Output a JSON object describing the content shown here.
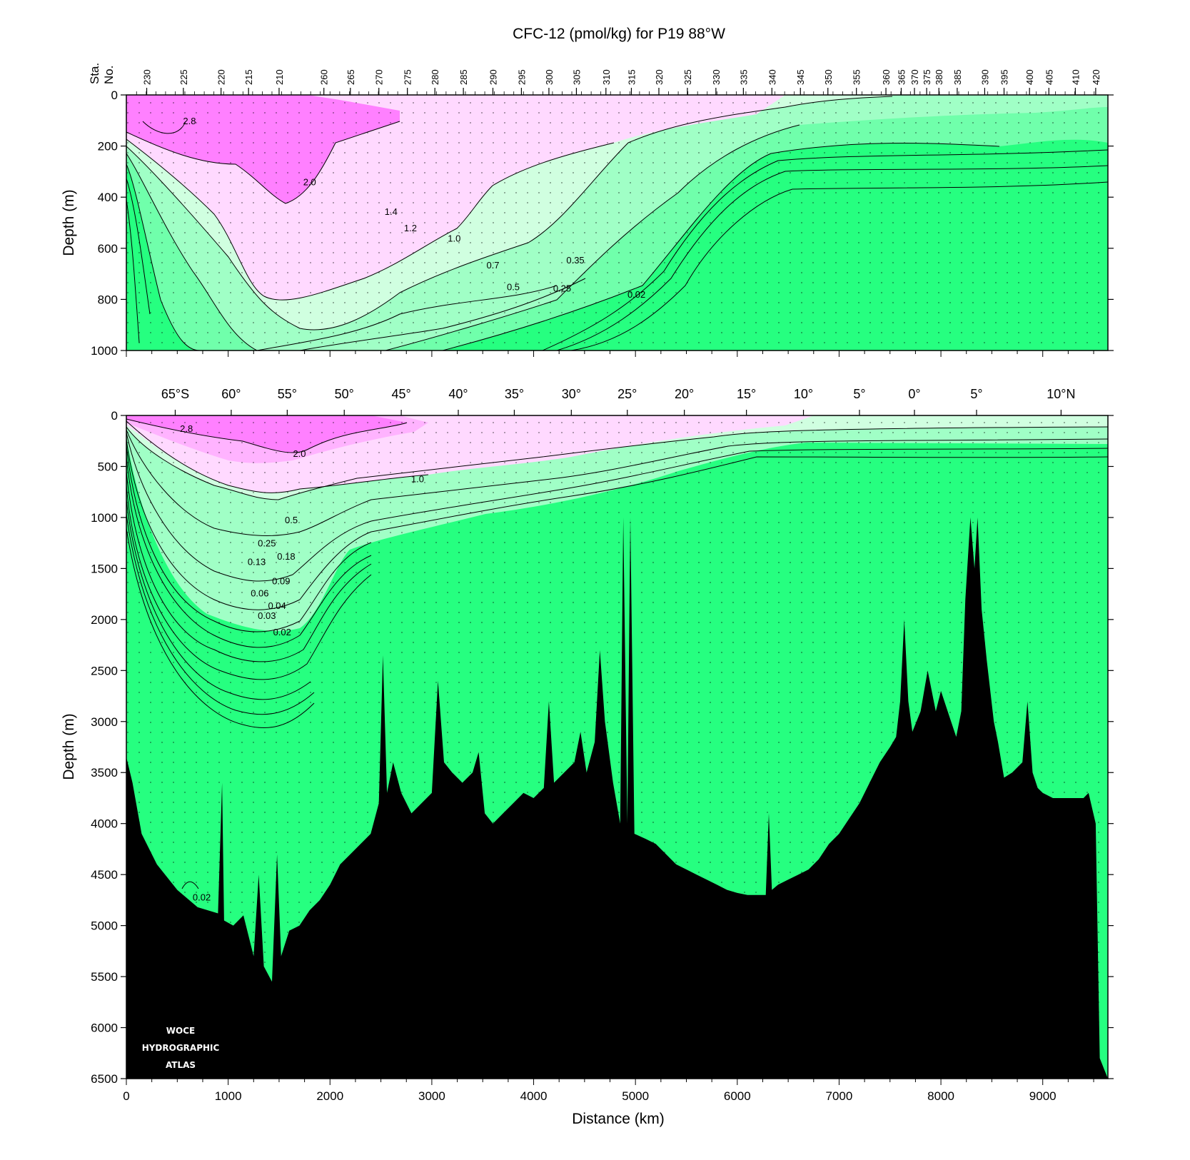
{
  "chart_data": {
    "type": "contour-section",
    "title": "CFC-12 (pmol/kg) for P19 88°W",
    "xlabel": "Distance (km)",
    "ylabel": "Depth (m)",
    "xlim": [
      0,
      9640
    ],
    "colors": {
      "pink_high": "#ff80ff",
      "pink_mid": "#ffb3ff",
      "pink_low": "#ffd9ff",
      "green_1": "#d0ffe0",
      "green_2": "#a0ffc6",
      "green_3": "#70ffab",
      "green_bg": "#26ff80",
      "bathymetry": "#000000"
    },
    "station_axis": {
      "label_line1": "Sta.",
      "label_line2": "No.",
      "stations": [
        {
          "label": "230",
          "km": 200
        },
        {
          "label": "225",
          "km": 560
        },
        {
          "label": "220",
          "km": 930
        },
        {
          "label": "215",
          "km": 1200
        },
        {
          "label": "210",
          "km": 1500
        },
        {
          "label": "260",
          "km": 1940
        },
        {
          "label": "265",
          "km": 2200
        },
        {
          "label": "270",
          "km": 2480
        },
        {
          "label": "275",
          "km": 2760
        },
        {
          "label": "280",
          "km": 3030
        },
        {
          "label": "285",
          "km": 3310
        },
        {
          "label": "290",
          "km": 3600
        },
        {
          "label": "295",
          "km": 3880
        },
        {
          "label": "300",
          "km": 4150
        },
        {
          "label": "305",
          "km": 4420
        },
        {
          "label": "310",
          "km": 4710
        },
        {
          "label": "315",
          "km": 4960
        },
        {
          "label": "320",
          "km": 5230
        },
        {
          "label": "325",
          "km": 5510
        },
        {
          "label": "330",
          "km": 5790
        },
        {
          "label": "335",
          "km": 6060
        },
        {
          "label": "340",
          "km": 6340
        },
        {
          "label": "345",
          "km": 6620
        },
        {
          "label": "350",
          "km": 6890
        },
        {
          "label": "355",
          "km": 7170
        },
        {
          "label": "360",
          "km": 7460
        },
        {
          "label": "365",
          "km": 7610
        },
        {
          "label": "370",
          "km": 7740
        },
        {
          "label": "375",
          "km": 7860
        },
        {
          "label": "380",
          "km": 7980
        },
        {
          "label": "385",
          "km": 8160
        },
        {
          "label": "390",
          "km": 8430
        },
        {
          "label": "395",
          "km": 8620
        },
        {
          "label": "400",
          "km": 8870
        },
        {
          "label": "405",
          "km": 9060
        },
        {
          "label": "410",
          "km": 9320
        },
        {
          "label": "420",
          "km": 9520
        }
      ]
    },
    "latitude_axis": [
      {
        "label": "65°S",
        "km": 480
      },
      {
        "label": "60°",
        "km": 1030
      },
      {
        "label": "55°",
        "km": 1580
      },
      {
        "label": "50°",
        "km": 2140
      },
      {
        "label": "45°",
        "km": 2700
      },
      {
        "label": "40°",
        "km": 3260
      },
      {
        "label": "35°",
        "km": 3810
      },
      {
        "label": "30°",
        "km": 4370
      },
      {
        "label": "25°",
        "km": 4920
      },
      {
        "label": "20°",
        "km": 5480
      },
      {
        "label": "15°",
        "km": 6090
      },
      {
        "label": "10°",
        "km": 6650
      },
      {
        "label": "5°",
        "km": 7200
      },
      {
        "label": "0°",
        "km": 7740
      },
      {
        "label": "5°",
        "km": 8350
      },
      {
        "label": "10°N",
        "km": 9180
      }
    ],
    "panels": [
      {
        "name": "upper",
        "ylim": [
          0,
          1000
        ],
        "yticks": [
          "0",
          "200",
          "400",
          "600",
          "800",
          "1000"
        ],
        "contour_labels": [
          {
            "text": "2.8",
            "km": 620,
            "depth": 100
          },
          {
            "text": "2.0",
            "km": 1800,
            "depth": 340
          },
          {
            "text": "1.4",
            "km": 2600,
            "depth": 455
          },
          {
            "text": "1.2",
            "km": 2790,
            "depth": 520
          },
          {
            "text": "1.0",
            "km": 3220,
            "depth": 560
          },
          {
            "text": "0.7",
            "km": 3600,
            "depth": 665
          },
          {
            "text": "0.5",
            "km": 3800,
            "depth": 750
          },
          {
            "text": "0.35",
            "km": 4410,
            "depth": 645
          },
          {
            "text": "0.25",
            "km": 4280,
            "depth": 755
          },
          {
            "text": "0.02",
            "km": 5010,
            "depth": 780
          }
        ]
      },
      {
        "name": "lower",
        "ylim": [
          0,
          6500
        ],
        "yticks": [
          "0",
          "500",
          "1000",
          "1500",
          "2000",
          "2500",
          "3000",
          "3500",
          "4000",
          "4500",
          "5000",
          "5500",
          "6000",
          "6500"
        ],
        "xticks": [
          "0",
          "1000",
          "2000",
          "3000",
          "4000",
          "5000",
          "6000",
          "7000",
          "8000",
          "9000"
        ],
        "contour_labels": [
          {
            "text": "2.8",
            "km": 590,
            "depth": 125
          },
          {
            "text": "2.0",
            "km": 1700,
            "depth": 370
          },
          {
            "text": "1.0",
            "km": 2860,
            "depth": 620
          },
          {
            "text": "0.5",
            "km": 1620,
            "depth": 1020
          },
          {
            "text": "0.25",
            "km": 1380,
            "depth": 1250
          },
          {
            "text": "0.18",
            "km": 1570,
            "depth": 1380
          },
          {
            "text": "0.13",
            "km": 1280,
            "depth": 1430
          },
          {
            "text": "0.09",
            "km": 1520,
            "depth": 1620
          },
          {
            "text": "0.06",
            "km": 1310,
            "depth": 1740
          },
          {
            "text": "0.04",
            "km": 1480,
            "depth": 1860
          },
          {
            "text": "0.03",
            "km": 1380,
            "depth": 1960
          },
          {
            "text": "0.02",
            "km": 1530,
            "depth": 2120
          },
          {
            "text": "0.02",
            "km": 740,
            "depth": 4720
          }
        ]
      }
    ],
    "logo_lines": [
      "WOCE",
      "HYDROGRAPHIC",
      "ATLAS"
    ]
  }
}
